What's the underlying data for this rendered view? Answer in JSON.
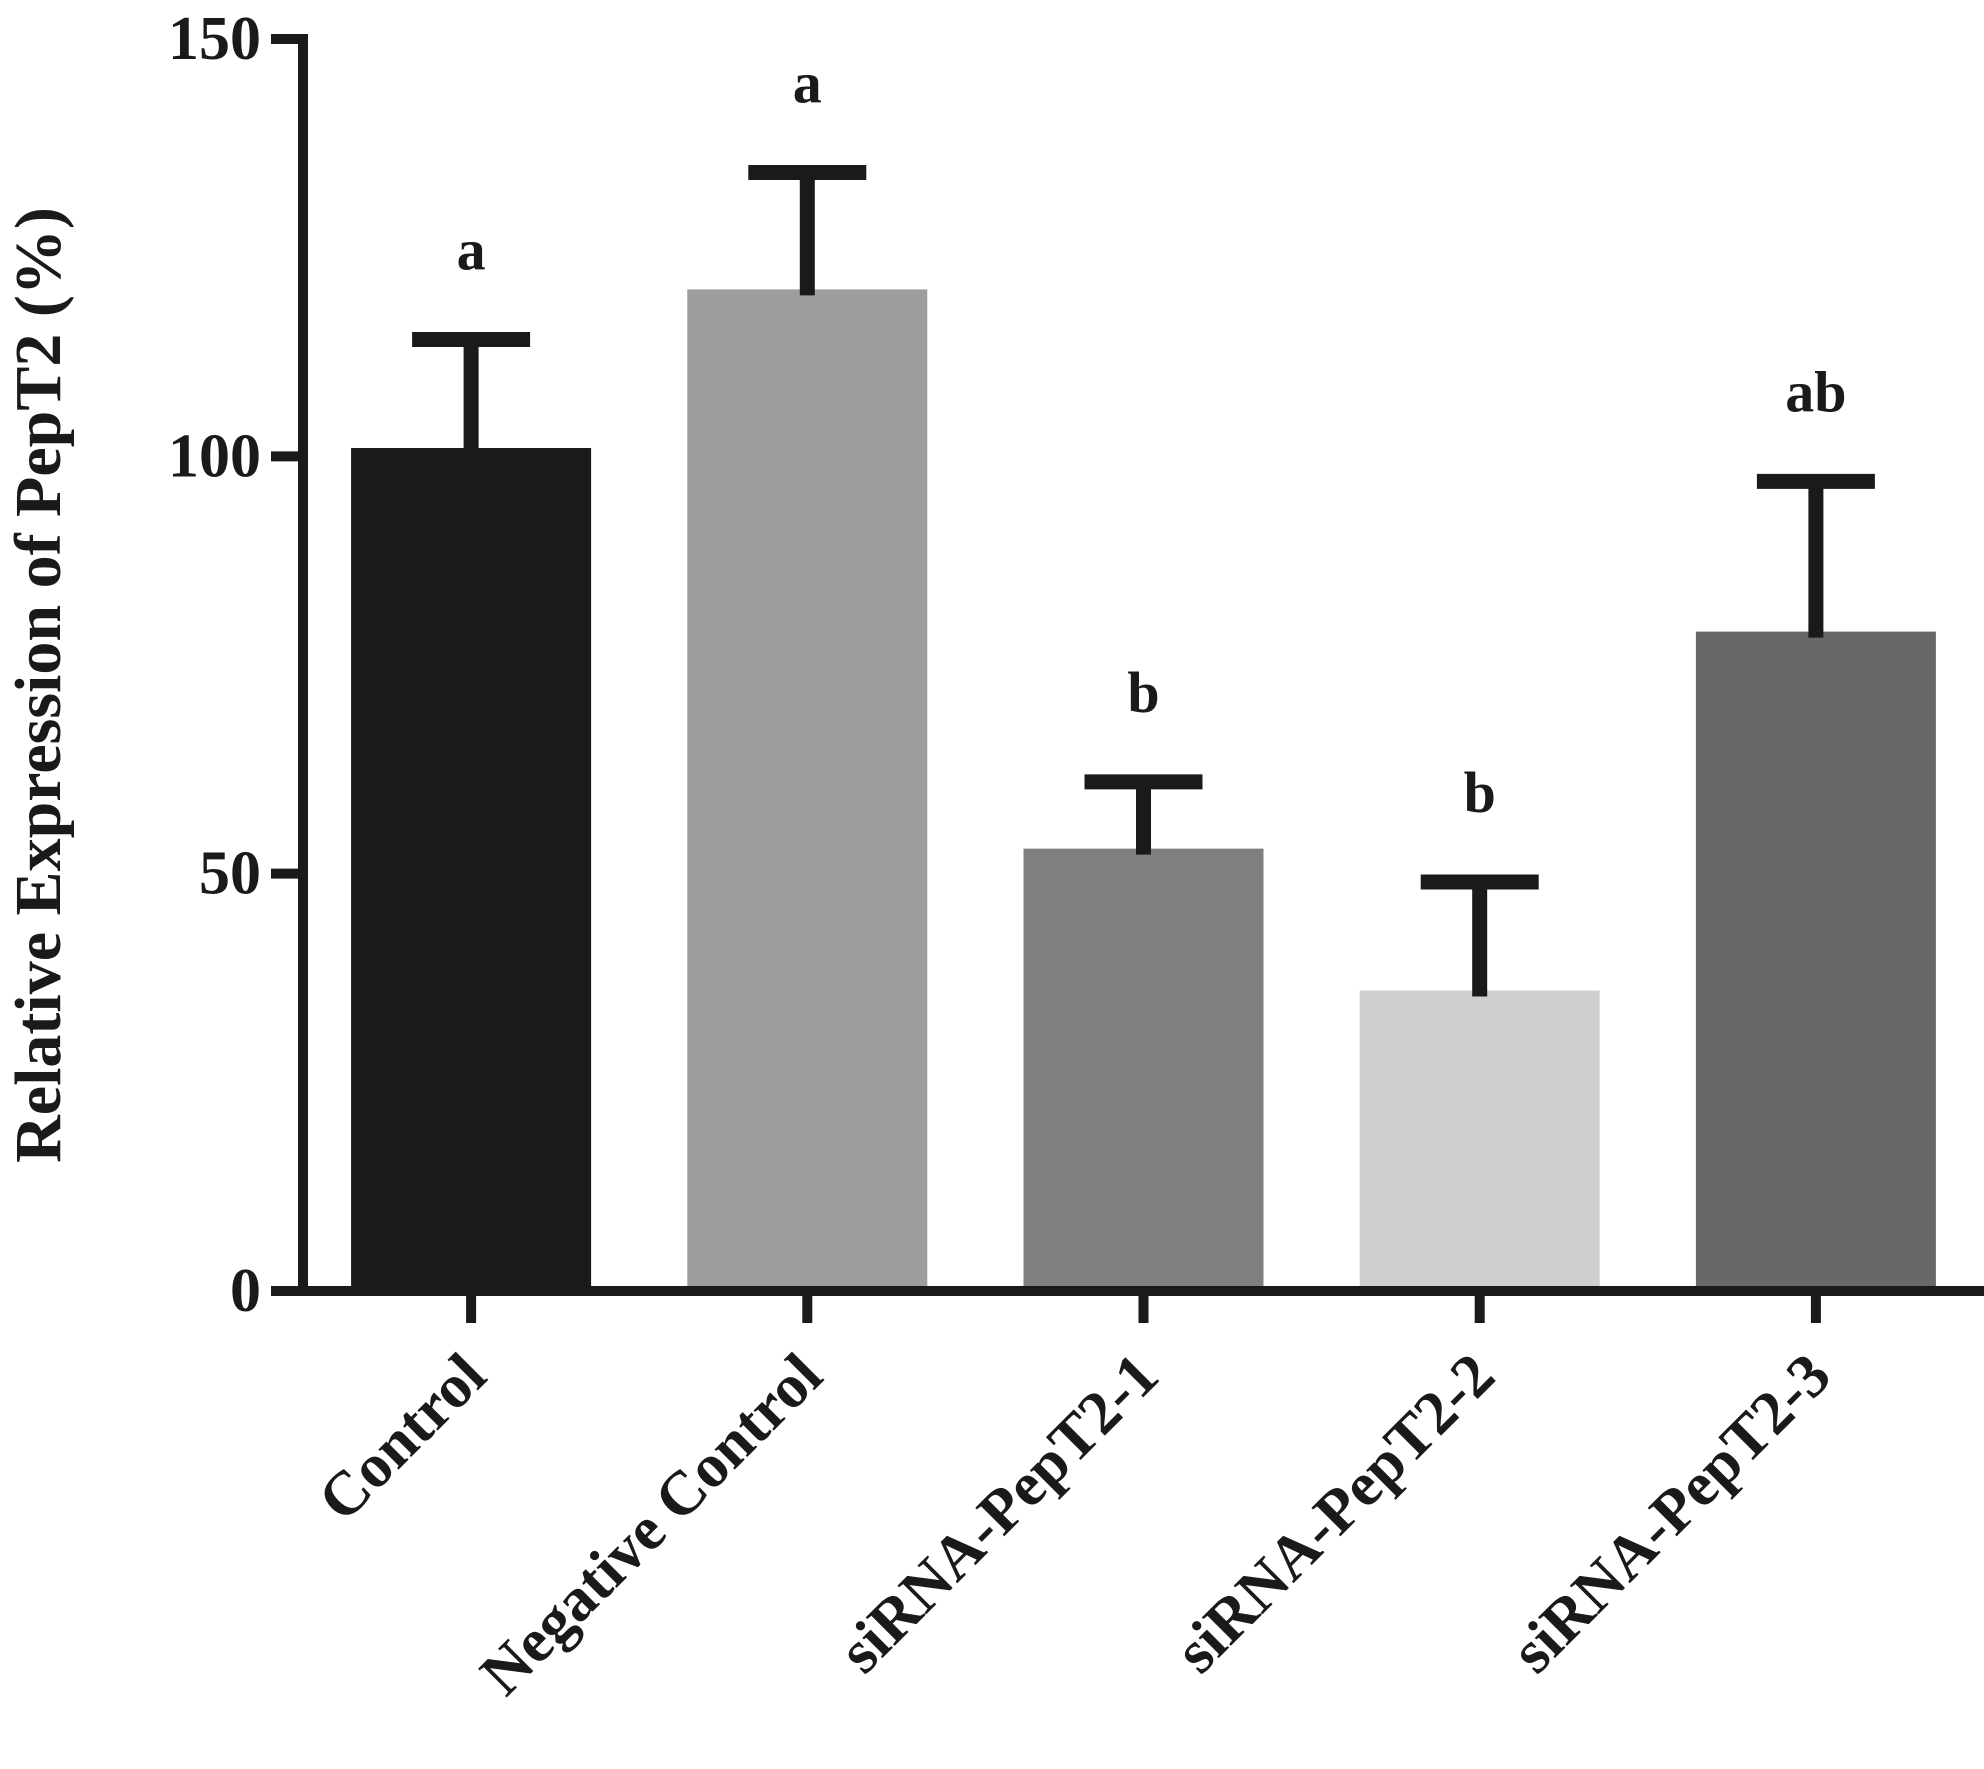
{
  "chart_data": {
    "type": "bar",
    "title": "",
    "xlabel": "",
    "ylabel": "Relative Expression of PepT2 (%)",
    "ylim": [
      0,
      150
    ],
    "yticks": [
      0,
      50,
      100,
      150
    ],
    "grid": false,
    "legend": "none",
    "categories": [
      "Control",
      "Negative Control",
      "siRNA-PepT2-1",
      "siRNA-PepT2-2",
      "siRNA-PepT2-3"
    ],
    "values": [
      101,
      120,
      53,
      36,
      79
    ],
    "errors": [
      13,
      14,
      8,
      13,
      18
    ],
    "significance": [
      "a",
      "a",
      "b",
      "b",
      "ab"
    ],
    "colors": [
      "#1a1a1a",
      "#9d9d9d",
      "#7f7f7f",
      "#cfcfcf",
      "#686868"
    ],
    "axis_color": "#1a1a1a",
    "error_bar_color": "#1a1a1a"
  }
}
